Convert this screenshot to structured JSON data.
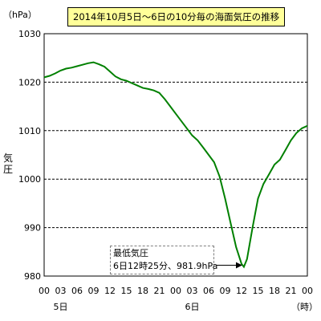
{
  "chart_data": {
    "type": "line",
    "title": "2014年10月5日～6日の10分毎の海面気圧の推移",
    "unit_label": "（hPa）",
    "ylabel": "気圧",
    "xlabel": "（時）",
    "ylim": [
      980,
      1030
    ],
    "yticks": [
      980,
      990,
      1000,
      1010,
      1020,
      1030
    ],
    "xlim": [
      0,
      48
    ],
    "xticks": [
      {
        "x": 0,
        "label": "00"
      },
      {
        "x": 3,
        "label": "03"
      },
      {
        "x": 6,
        "label": "06"
      },
      {
        "x": 9,
        "label": "09"
      },
      {
        "x": 12,
        "label": "12"
      },
      {
        "x": 15,
        "label": "15"
      },
      {
        "x": 18,
        "label": "18"
      },
      {
        "x": 21,
        "label": "21"
      },
      {
        "x": 24,
        "label": "00"
      },
      {
        "x": 27,
        "label": "03"
      },
      {
        "x": 30,
        "label": "06"
      },
      {
        "x": 33,
        "label": "09"
      },
      {
        "x": 36,
        "label": "12"
      },
      {
        "x": 39,
        "label": "15"
      },
      {
        "x": 42,
        "label": "18"
      },
      {
        "x": 45,
        "label": "21"
      },
      {
        "x": 48,
        "label": "00"
      }
    ],
    "day_labels": [
      {
        "x": 3,
        "label": "5日"
      },
      {
        "x": 27,
        "label": "6日"
      }
    ],
    "grid": true,
    "line_color": "#008000",
    "series": [
      {
        "x": [
          0,
          1,
          2,
          3,
          4,
          5,
          6,
          7,
          8,
          9,
          10,
          11,
          12,
          13,
          14,
          15,
          16,
          17,
          18,
          19,
          20,
          21,
          22,
          23,
          24,
          25,
          26,
          27,
          28,
          29,
          30,
          31,
          32,
          33,
          34,
          35,
          36,
          36.42,
          37,
          38,
          39,
          40,
          41,
          42,
          43,
          44,
          45,
          46,
          47,
          48
        ],
        "values": [
          1021,
          1021.3,
          1021.8,
          1022.4,
          1022.8,
          1023,
          1023.3,
          1023.6,
          1023.9,
          1024.1,
          1023.7,
          1023.2,
          1022.2,
          1021.2,
          1020.6,
          1020.3,
          1019.8,
          1019.3,
          1018.8,
          1018.6,
          1018.3,
          1017.8,
          1016.5,
          1015,
          1013.5,
          1012,
          1010.5,
          1009,
          1008,
          1006.5,
          1005,
          1003.5,
          1000.5,
          996,
          991,
          986,
          982.5,
          981.9,
          983.5,
          990,
          996,
          999,
          1001,
          1003,
          1004,
          1006,
          1008,
          1009.5,
          1010.5,
          1011
        ]
      }
    ],
    "annotation": {
      "line1": "最低気圧",
      "line2": "6日12時25分、981.9hPa",
      "x": 36.42,
      "y": 981.9
    }
  }
}
